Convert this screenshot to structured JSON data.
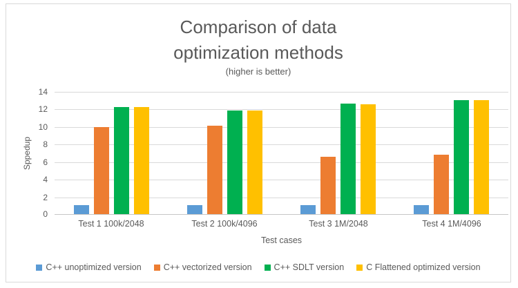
{
  "chart_data": {
    "type": "bar",
    "title_lines": [
      "Comparison of data",
      "optimization methods"
    ],
    "subtitle": "(higher is better)",
    "ylabel": "Sppedup",
    "xlabel": "Test cases",
    "categories": [
      "Test 1 100k/2048",
      "Test 2 100k/4096",
      "Test 3 1M/2048",
      "Test 4 1M/4096"
    ],
    "series": [
      {
        "name": "C++ unoptimized version",
        "color": "#5B9BD5",
        "values": [
          1,
          1,
          1,
          1
        ]
      },
      {
        "name": "C++ vectorized version",
        "color": "#ED7D31",
        "values": [
          9.9,
          10.1,
          6.5,
          6.8
        ]
      },
      {
        "name": "C++ SDLT version",
        "color": "#00B050",
        "values": [
          12.2,
          11.8,
          12.6,
          13
        ]
      },
      {
        "name": "C Flattened optimized version",
        "color": "#FFC000",
        "values": [
          12.2,
          11.8,
          12.5,
          13
        ]
      }
    ],
    "ylim": [
      0,
      14
    ],
    "ytick_step": 2,
    "grid": true,
    "legend_position": "bottom"
  },
  "colors": {
    "grid": "#D9D9D9",
    "axis": "#C6C6C6",
    "text": "#595959",
    "frame_border": "#D9D9D9",
    "background": "#FFFFFF"
  }
}
